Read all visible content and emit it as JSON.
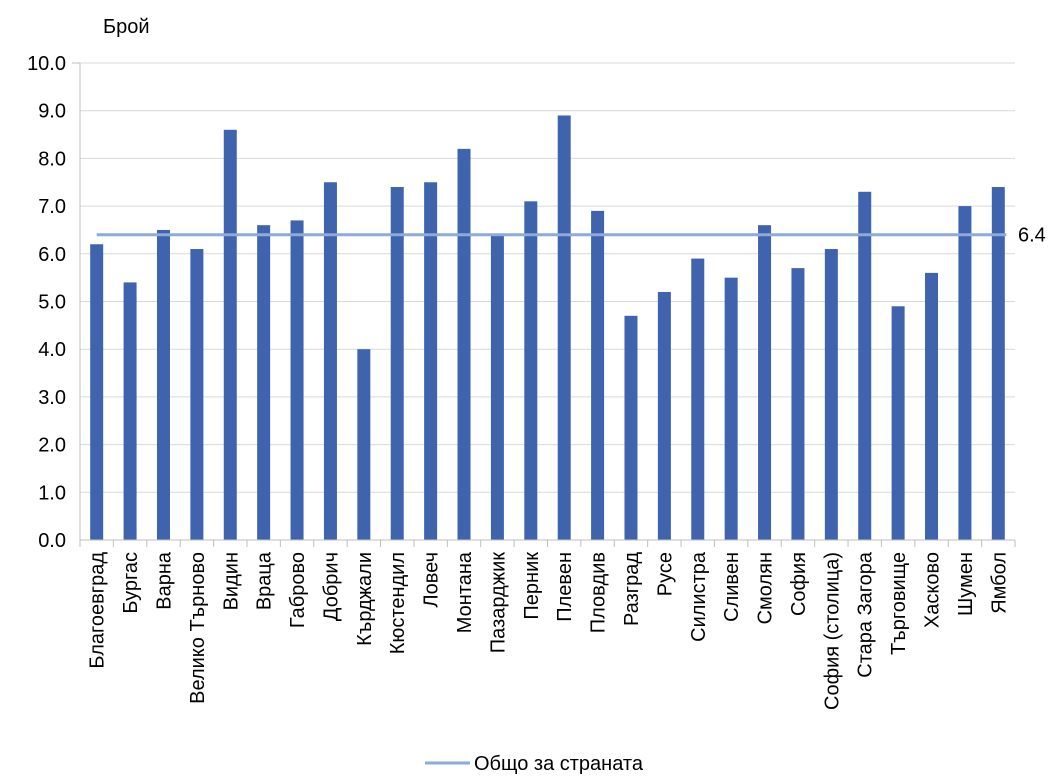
{
  "chart_data": {
    "type": "bar",
    "ylabel": "Брой",
    "ylim": [
      0,
      10
    ],
    "yticks": [
      "0.0",
      "1.0",
      "2.0",
      "3.0",
      "4.0",
      "5.0",
      "6.0",
      "7.0",
      "8.0",
      "9.0",
      "10.0"
    ],
    "grid": true,
    "categories": [
      "Благоевград",
      "Бургас",
      "Варна",
      "Велико Търново",
      "Видин",
      "Враца",
      "Габрово",
      "Добрич",
      "Кърджали",
      "Кюстендил",
      "Ловеч",
      "Монтана",
      "Пазарджик",
      "Перник",
      "Плевен",
      "Пловдив",
      "Разград",
      "Русе",
      "Силистра",
      "Сливен",
      "Смолян",
      "София",
      "София (столица)",
      "Стара Загора",
      "Търговище",
      "Хасково",
      "Шумен",
      "Ямбол"
    ],
    "series": [
      {
        "values": [
          6.2,
          5.4,
          6.5,
          6.1,
          8.6,
          6.6,
          6.7,
          7.5,
          4.0,
          7.4,
          7.5,
          8.2,
          6.4,
          7.1,
          8.9,
          6.9,
          4.7,
          5.2,
          5.9,
          5.5,
          6.6,
          5.7,
          6.1,
          7.3,
          4.9,
          5.6,
          7.0,
          7.4
        ],
        "color": "#3f63ad"
      }
    ],
    "reference_line": {
      "name": "Общо за страната",
      "value": 6.4,
      "label": "6.4",
      "color": "#8eaadb"
    },
    "legend_position": "bottom"
  }
}
